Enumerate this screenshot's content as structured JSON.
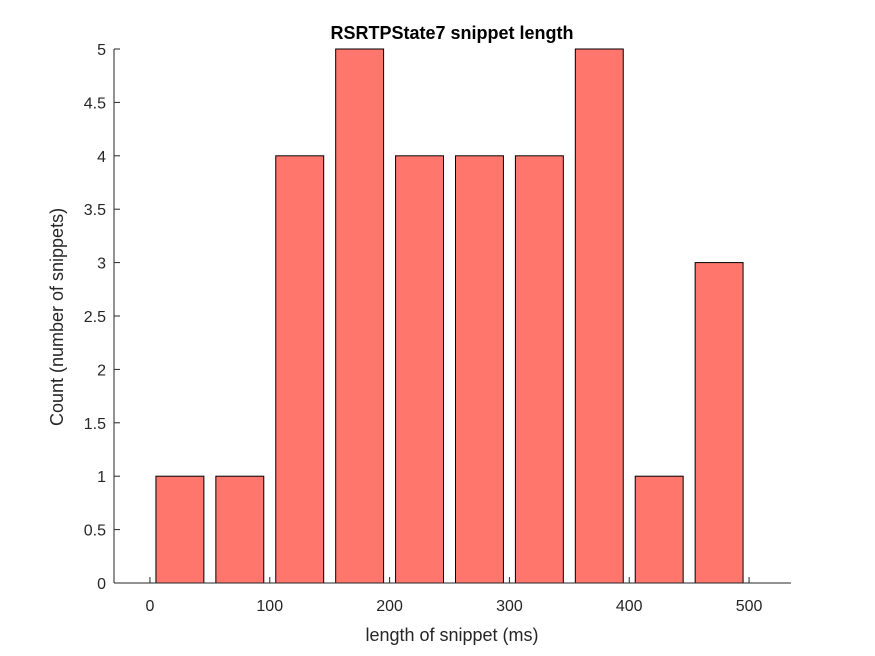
{
  "chart_data": {
    "type": "bar",
    "title": "RSRTPState7 snippet length",
    "xlabel": "length of snippet (ms)",
    "ylabel": "Count (number of snippets)",
    "bin_centers": [
      25,
      75,
      125,
      175,
      225,
      275,
      325,
      375,
      425,
      475
    ],
    "bin_width": 50,
    "values": [
      1,
      1,
      4,
      5,
      4,
      4,
      4,
      5,
      1,
      3
    ],
    "xlim": [
      -30,
      535
    ],
    "ylim": [
      0,
      5
    ],
    "xticks": [
      0,
      100,
      200,
      300,
      400,
      500
    ],
    "xtick_labels": [
      "0",
      "100",
      "200",
      "300",
      "400",
      "500"
    ],
    "yticks": [
      0,
      0.5,
      1,
      1.5,
      2,
      2.5,
      3,
      3.5,
      4,
      4.5,
      5
    ],
    "ytick_labels": [
      "0",
      "0.5",
      "1",
      "1.5",
      "2",
      "2.5",
      "3",
      "3.5",
      "4",
      "4.5",
      "5"
    ],
    "bar_color": "#ff766d",
    "edge_color": "#000000",
    "grid": false
  }
}
